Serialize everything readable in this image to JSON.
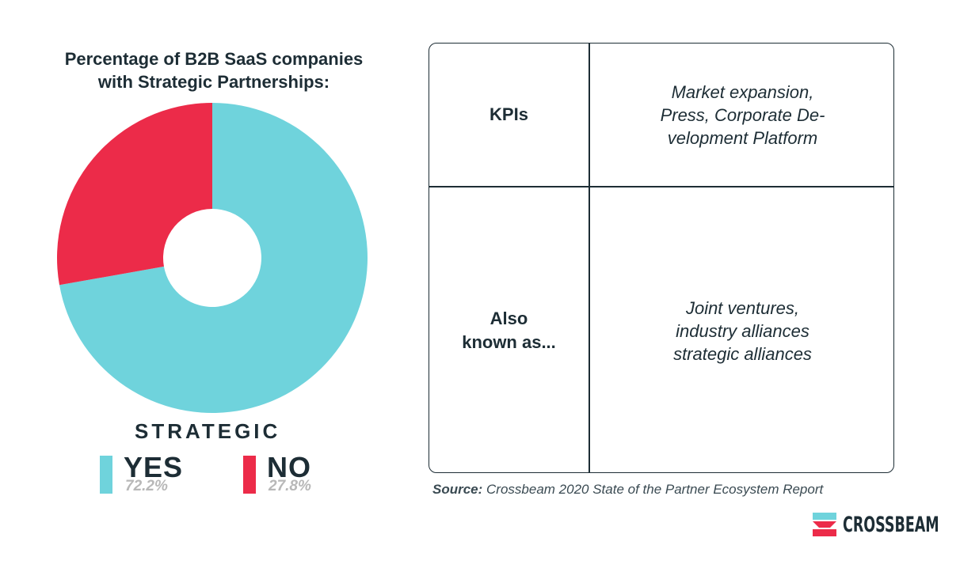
{
  "chart_data": {
    "type": "pie",
    "title": "Percentage of B2B SaaS companies with Strategic Partnerships:",
    "title_lines": [
      "Percentage of B2B SaaS companies",
      "with Strategic Partnerships:"
    ],
    "legend_title": "STRATEGIC",
    "slices": [
      {
        "label": "YES",
        "value": 72.2,
        "display": "72.2%",
        "color": "#6fd3dc"
      },
      {
        "label": "NO",
        "value": 27.8,
        "display": "27.8%",
        "color": "#ec2b49"
      }
    ],
    "donut": true
  },
  "table": {
    "rows": [
      {
        "header": "KPIs",
        "body_lines": [
          "Market expansion,",
          "Press, Corporate De-",
          "velopment Platform"
        ]
      },
      {
        "header_lines": [
          "Also",
          "known as..."
        ],
        "body_lines": [
          "Joint ventures,",
          "industry alliances",
          "strategic alliances"
        ]
      }
    ]
  },
  "source": {
    "label": "Source:",
    "text": " Crossbeam 2020 State of the Partner Ecosystem Report"
  },
  "brand": {
    "name": "CROSSBEAM",
    "logo_icon": "crossbeam-logo-icon",
    "colors": {
      "teal": "#6fd3dc",
      "red": "#ec2b49",
      "navy": "#1d2d35"
    }
  }
}
